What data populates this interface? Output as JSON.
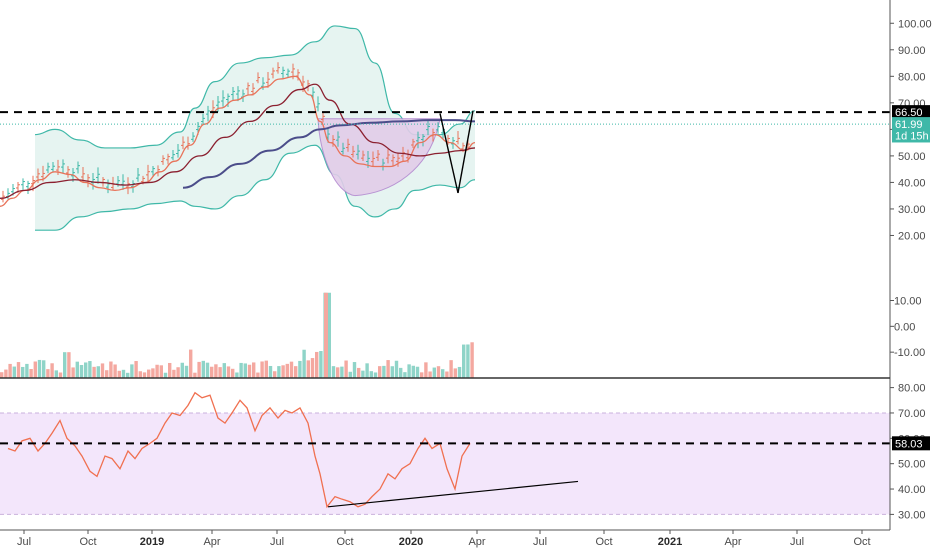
{
  "chart_data": [
    {
      "type": "line",
      "ylim": [
        10,
        105
      ],
      "y_ticks": [
        100,
        90,
        80,
        70,
        60,
        50,
        40,
        30,
        20
      ],
      "y_tick_labels": [
        "100.00",
        "90.00",
        "80.00",
        "70.00",
        "60.00",
        "50.00",
        "40.00",
        "30.00",
        "20.00"
      ],
      "price_badges": [
        {
          "label": "66.50",
          "value": 66.5,
          "color": "#000000"
        },
        {
          "label": "61.99",
          "value": 61.99,
          "color": "#3fb8a8"
        },
        {
          "label": "1d 15h",
          "value": 57.7,
          "color": "#3fb8a8"
        }
      ],
      "horizontal_levels": [
        {
          "value": 66.5,
          "style": "dashed",
          "color": "#000000"
        },
        {
          "value": 61.99,
          "style": "dotted",
          "color": "#3fb8a8"
        }
      ],
      "series": [
        {
          "color": "#e8735a",
          "x": [
            0,
            12,
            25,
            40,
            55,
            70,
            85,
            100,
            115,
            130,
            145,
            160,
            175,
            190,
            205,
            220,
            235,
            250,
            265,
            280,
            295,
            310,
            320,
            330,
            345,
            360,
            375,
            390,
            405,
            420,
            435,
            450,
            465,
            475
          ],
          "y": [
            31,
            34,
            37,
            41,
            44,
            43,
            40,
            38,
            37,
            38,
            40,
            44,
            48,
            54,
            62,
            68,
            71,
            73,
            76,
            79,
            80,
            73,
            63,
            55,
            50,
            47,
            46,
            46,
            48,
            55,
            58,
            55,
            52,
            55
          ]
        },
        {
          "color": "#8b2030",
          "x": [
            0,
            25,
            50,
            75,
            100,
            125,
            150,
            175,
            200,
            225,
            250,
            275,
            300,
            315,
            330,
            350,
            375,
            400,
            420,
            440,
            460,
            475
          ],
          "y": [
            34,
            37,
            40,
            41,
            40,
            39,
            40,
            44,
            50,
            57,
            63,
            69,
            75,
            77,
            71,
            62,
            55,
            51,
            50,
            51,
            52,
            53
          ]
        },
        {
          "color": "#4b4d8a",
          "x": [
            183,
            210,
            240,
            270,
            300,
            320,
            340,
            370,
            400,
            430,
            455,
            475
          ],
          "y": [
            38,
            42,
            47,
            52,
            57,
            60,
            61.5,
            62.5,
            63,
            63.5,
            63.5,
            63
          ]
        }
      ],
      "bollinger": {
        "upper": {
          "x": [
            35,
            55,
            80,
            105,
            130,
            155,
            180,
            195,
            215,
            240,
            265,
            290,
            315,
            335,
            355,
            375,
            395,
            415,
            440,
            460,
            475
          ],
          "y": [
            58,
            60,
            56,
            53,
            53,
            54,
            59,
            68,
            78,
            85,
            87,
            88,
            93,
            99,
            98,
            85,
            66,
            58,
            58,
            62,
            67
          ]
        },
        "lower": {
          "x": [
            35,
            55,
            80,
            105,
            130,
            155,
            180,
            195,
            215,
            240,
            265,
            290,
            315,
            335,
            355,
            375,
            395,
            415,
            440,
            460,
            475
          ],
          "y": [
            22,
            22,
            27,
            29,
            30,
            32,
            33,
            31,
            30,
            35,
            41,
            51,
            54,
            43,
            31,
            27,
            30,
            37,
            39,
            38,
            41
          ]
        },
        "color": "#3fb8a8",
        "fill": "#e6f4f1"
      },
      "cup_shape": {
        "color": "#b48ad0",
        "fill": "#e2cde9"
      },
      "trend_lines": [
        {
          "x": [
            440,
            458
          ],
          "y": [
            66,
            36
          ],
          "color": "#000000"
        },
        {
          "x": [
            458,
            473
          ],
          "y": [
            36,
            67
          ],
          "color": "#000000"
        }
      ],
      "volume": {
        "y_ticks": [
          10,
          0,
          -10
        ],
        "y_tick_labels": [
          "10.00",
          "0.00",
          "-10.00"
        ],
        "ylim": [
          -20,
          16
        ]
      }
    },
    {
      "type": "line",
      "ylim": [
        27,
        83
      ],
      "y_ticks": [
        80,
        70,
        60,
        50,
        40,
        30
      ],
      "y_tick_labels": [
        "80.00",
        "70.00",
        "60.00",
        "50.00",
        "40.00",
        "30.00"
      ],
      "band": {
        "upper": 70,
        "lower": 30,
        "fill": "#f3e6fb",
        "color": "#c9b0dc"
      },
      "level": {
        "value": 58.03,
        "label": "58.03",
        "style": "dashed",
        "color": "#000000"
      },
      "series": [
        {
          "color": "#f07050",
          "x": [
            8,
            15,
            22,
            30,
            38,
            45,
            52,
            60,
            67,
            75,
            82,
            90,
            97,
            105,
            112,
            120,
            128,
            135,
            142,
            150,
            157,
            165,
            172,
            180,
            188,
            195,
            202,
            210,
            218,
            225,
            232,
            240,
            247,
            255,
            262,
            270,
            278,
            285,
            292,
            300,
            308,
            315,
            320,
            327,
            335,
            342,
            350,
            358,
            365,
            372,
            380,
            388,
            395,
            402,
            410,
            418,
            425,
            432,
            440,
            447,
            455,
            462,
            470
          ],
          "y": [
            56,
            55,
            59,
            60,
            55,
            58,
            62,
            67,
            60,
            57,
            53,
            47,
            45,
            53,
            52,
            48,
            55,
            52,
            56,
            58,
            60,
            66,
            70,
            69,
            73,
            78,
            76,
            77,
            68,
            66,
            70,
            75,
            72,
            63,
            69,
            72,
            68,
            71,
            70,
            72,
            66,
            53,
            46,
            33,
            37,
            36,
            35,
            33,
            34,
            37,
            40,
            46,
            44,
            48,
            50,
            56,
            60,
            56,
            58,
            48,
            40,
            53,
            58
          ]
        },
        {
          "color": "#000000",
          "x": [
            328,
            578
          ],
          "y": [
            33,
            43
          ]
        }
      ]
    }
  ],
  "x_axis": {
    "labels": [
      {
        "text": "Jul",
        "x": 24,
        "bold": false
      },
      {
        "text": "Oct",
        "x": 88,
        "bold": false
      },
      {
        "text": "2019",
        "x": 152,
        "bold": true
      },
      {
        "text": "Apr",
        "x": 212,
        "bold": false
      },
      {
        "text": "Jul",
        "x": 277,
        "bold": false
      },
      {
        "text": "Oct",
        "x": 345,
        "bold": false
      },
      {
        "text": "2020",
        "x": 411,
        "bold": true
      },
      {
        "text": "Apr",
        "x": 477,
        "bold": false
      },
      {
        "text": "Jul",
        "x": 540,
        "bold": false
      },
      {
        "text": "Oct",
        "x": 604,
        "bold": false
      },
      {
        "text": "2021",
        "x": 670,
        "bold": true
      },
      {
        "text": "Apr",
        "x": 733,
        "bold": false
      },
      {
        "text": "Jul",
        "x": 797,
        "bold": false
      },
      {
        "text": "Oct",
        "x": 862,
        "bold": false
      }
    ]
  }
}
